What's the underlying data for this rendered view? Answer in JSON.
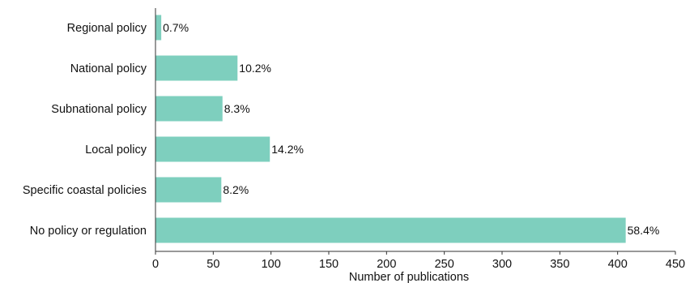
{
  "chart_data": {
    "type": "bar",
    "orientation": "horizontal",
    "categories": [
      "Regional policy",
      "National policy",
      "Subnational policy",
      "Local policy",
      "Specific coastal policies",
      "No policy or regulation"
    ],
    "values": [
      5,
      71,
      58,
      99,
      57,
      407
    ],
    "data_labels": [
      "0.7%",
      "10.2%",
      "8.3%",
      "14.2%",
      "8.2%",
      "58.4%"
    ],
    "xlabel": "Number of publications",
    "ylabel": "",
    "xlim": [
      0,
      450
    ],
    "xticks": [
      0,
      50,
      100,
      150,
      200,
      250,
      300,
      350,
      400,
      450
    ],
    "bar_color": "#7ecfbe",
    "grid": false,
    "legend": "none"
  }
}
